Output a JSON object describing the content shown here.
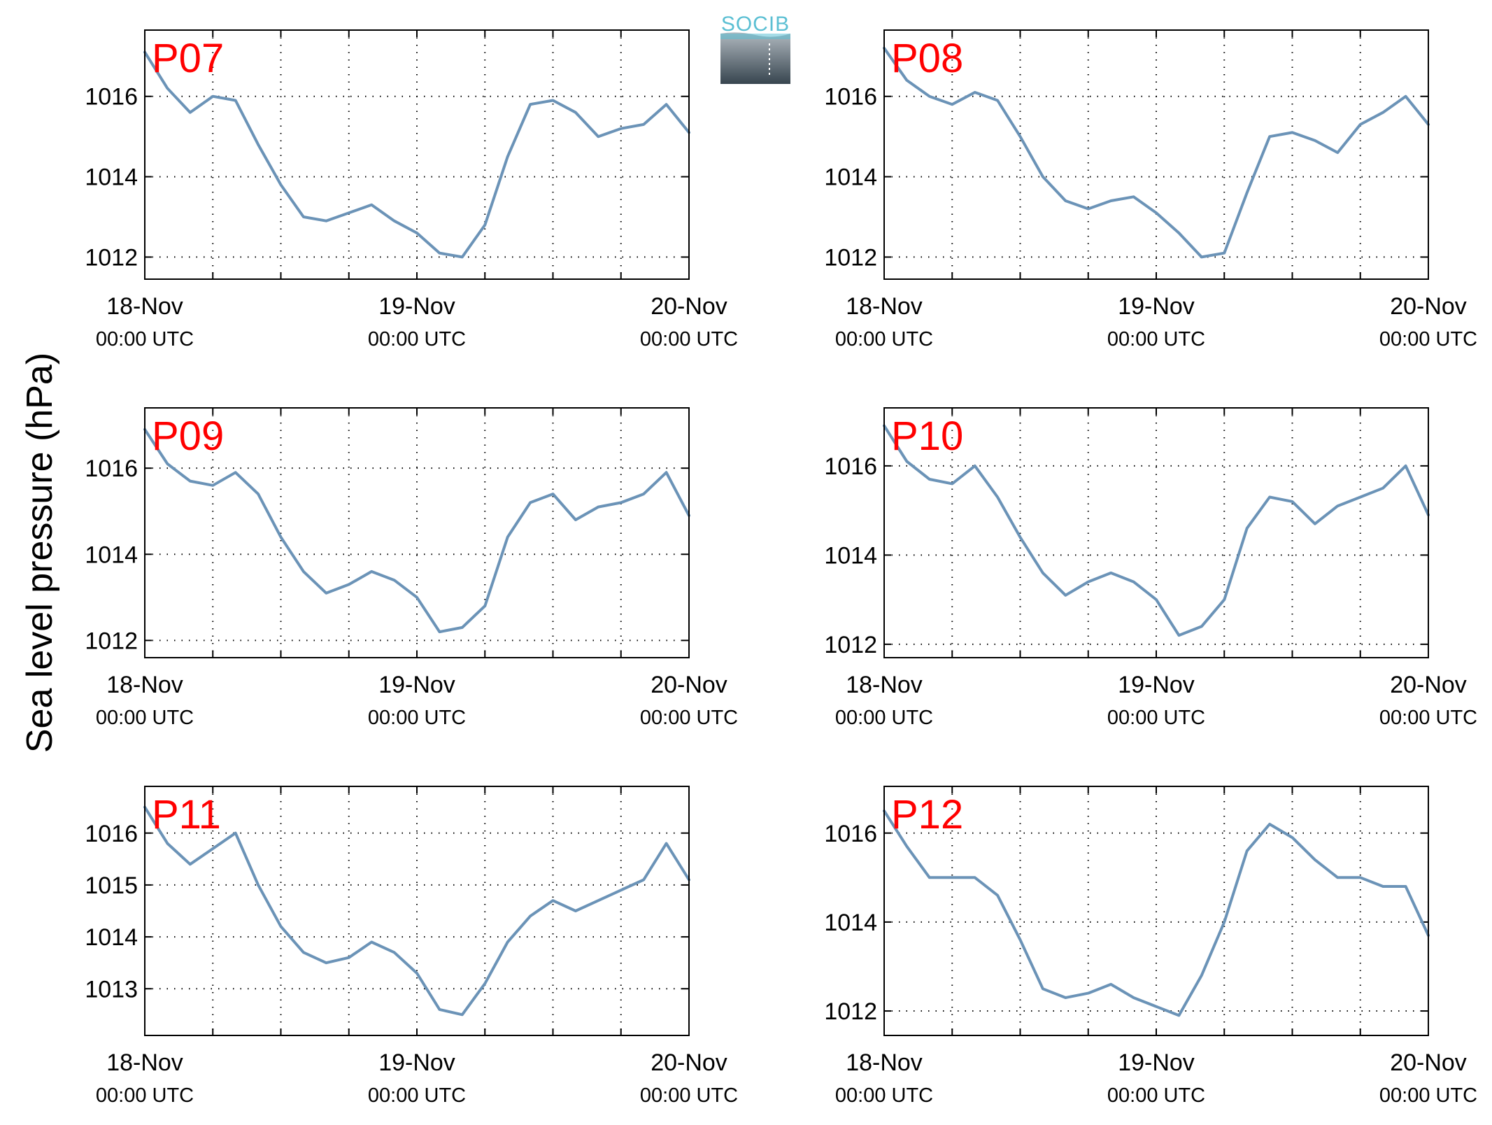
{
  "figure": {
    "ylabel": "Sea level pressure (hPa)",
    "logo_text": "SOCIB"
  },
  "colors": {
    "line": "#6b93b7",
    "panel_label": "#ff0000",
    "grid": "#000000",
    "logo_text": "#5bbfd3"
  },
  "chart_data": [
    {
      "type": "line",
      "panel": "P07",
      "x_ticks": [
        {
          "date": "18-Nov",
          "time": "00:00 UTC"
        },
        {
          "date": "19-Nov",
          "time": "00:00 UTC"
        },
        {
          "date": "20-Nov",
          "time": "00:00 UTC"
        }
      ],
      "x_hours": [
        0,
        2,
        4,
        6,
        8,
        10,
        12,
        14,
        16,
        18,
        20,
        22,
        24,
        26,
        28,
        30,
        32,
        34,
        36,
        38,
        40,
        42,
        44,
        46,
        48
      ],
      "values": [
        1017.1,
        1016.2,
        1015.6,
        1016.0,
        1015.9,
        1014.8,
        1013.8,
        1013.0,
        1012.9,
        1013.1,
        1013.3,
        1012.9,
        1012.6,
        1012.1,
        1012.0,
        1012.8,
        1014.5,
        1015.8,
        1015.9,
        1015.6,
        1015.0,
        1015.2,
        1015.3,
        1015.8,
        1015.1
      ],
      "y_ticks": [
        1012,
        1014,
        1016
      ],
      "ylim": [
        1011.45,
        1017.65
      ],
      "grid": "dotted"
    },
    {
      "type": "line",
      "panel": "P08",
      "x_ticks": [
        {
          "date": "18-Nov",
          "time": "00:00 UTC"
        },
        {
          "date": "19-Nov",
          "time": "00:00 UTC"
        },
        {
          "date": "20-Nov",
          "time": "00:00 UTC"
        }
      ],
      "x_hours": [
        0,
        2,
        4,
        6,
        8,
        10,
        12,
        14,
        16,
        18,
        20,
        22,
        24,
        26,
        28,
        30,
        32,
        34,
        36,
        38,
        40,
        42,
        44,
        46,
        48
      ],
      "values": [
        1017.2,
        1016.4,
        1016.0,
        1015.8,
        1016.1,
        1015.9,
        1015.0,
        1014.0,
        1013.4,
        1013.2,
        1013.4,
        1013.5,
        1013.1,
        1012.6,
        1012.0,
        1012.1,
        1013.6,
        1015.0,
        1015.1,
        1014.9,
        1014.6,
        1015.3,
        1015.6,
        1016.0,
        1015.3
      ],
      "y_ticks": [
        1012,
        1014,
        1016
      ],
      "ylim": [
        1011.45,
        1017.65
      ],
      "grid": "dotted"
    },
    {
      "type": "line",
      "panel": "P09",
      "x_ticks": [
        {
          "date": "18-Nov",
          "time": "00:00 UTC"
        },
        {
          "date": "19-Nov",
          "time": "00:00 UTC"
        },
        {
          "date": "20-Nov",
          "time": "00:00 UTC"
        }
      ],
      "x_hours": [
        0,
        2,
        4,
        6,
        8,
        10,
        12,
        14,
        16,
        18,
        20,
        22,
        24,
        26,
        28,
        30,
        32,
        34,
        36,
        38,
        40,
        42,
        44,
        46,
        48
      ],
      "values": [
        1016.9,
        1016.1,
        1015.7,
        1015.6,
        1015.9,
        1015.4,
        1014.4,
        1013.6,
        1013.1,
        1013.3,
        1013.6,
        1013.4,
        1013.0,
        1012.2,
        1012.3,
        1012.8,
        1014.4,
        1015.2,
        1015.4,
        1014.8,
        1015.1,
        1015.2,
        1015.4,
        1015.9,
        1014.9
      ],
      "y_ticks": [
        1012,
        1014,
        1016
      ],
      "ylim": [
        1011.6,
        1017.4
      ],
      "grid": "dotted"
    },
    {
      "type": "line",
      "panel": "P10",
      "x_ticks": [
        {
          "date": "18-Nov",
          "time": "00:00 UTC"
        },
        {
          "date": "19-Nov",
          "time": "00:00 UTC"
        },
        {
          "date": "20-Nov",
          "time": "00:00 UTC"
        }
      ],
      "x_hours": [
        0,
        2,
        4,
        6,
        8,
        10,
        12,
        14,
        16,
        18,
        20,
        22,
        24,
        26,
        28,
        30,
        32,
        34,
        36,
        38,
        40,
        42,
        44,
        46,
        48
      ],
      "values": [
        1016.9,
        1016.1,
        1015.7,
        1015.6,
        1016.0,
        1015.3,
        1014.4,
        1013.6,
        1013.1,
        1013.4,
        1013.6,
        1013.4,
        1013.0,
        1012.2,
        1012.4,
        1013.0,
        1014.6,
        1015.3,
        1015.2,
        1014.7,
        1015.1,
        1015.3,
        1015.5,
        1016.0,
        1014.9
      ],
      "y_ticks": [
        1012,
        1014,
        1016
      ],
      "ylim": [
        1011.7,
        1017.3
      ],
      "grid": "dotted"
    },
    {
      "type": "line",
      "panel": "P11",
      "x_ticks": [
        {
          "date": "18-Nov",
          "time": "00:00 UTC"
        },
        {
          "date": "19-Nov",
          "time": "00:00 UTC"
        },
        {
          "date": "20-Nov",
          "time": "00:00 UTC"
        }
      ],
      "x_hours": [
        0,
        2,
        4,
        6,
        8,
        10,
        12,
        14,
        16,
        18,
        20,
        22,
        24,
        26,
        28,
        30,
        32,
        34,
        36,
        38,
        40,
        42,
        44,
        46,
        48
      ],
      "values": [
        1016.5,
        1015.8,
        1015.4,
        1015.7,
        1016.0,
        1015.0,
        1014.2,
        1013.7,
        1013.5,
        1013.6,
        1013.9,
        1013.7,
        1013.3,
        1012.6,
        1012.5,
        1013.1,
        1013.9,
        1014.4,
        1014.7,
        1014.5,
        1014.7,
        1014.9,
        1015.1,
        1015.8,
        1015.1
      ],
      "y_ticks": [
        1013,
        1014,
        1015,
        1016
      ],
      "ylim": [
        1012.1,
        1016.9
      ],
      "grid": "dotted"
    },
    {
      "type": "line",
      "panel": "P12",
      "x_ticks": [
        {
          "date": "18-Nov",
          "time": "00:00 UTC"
        },
        {
          "date": "19-Nov",
          "time": "00:00 UTC"
        },
        {
          "date": "20-Nov",
          "time": "00:00 UTC"
        }
      ],
      "x_hours": [
        0,
        2,
        4,
        6,
        8,
        10,
        12,
        14,
        16,
        18,
        20,
        22,
        24,
        26,
        28,
        30,
        32,
        34,
        36,
        38,
        40,
        42,
        44,
        46,
        48
      ],
      "values": [
        1016.5,
        1015.7,
        1015.0,
        1015.0,
        1015.0,
        1014.6,
        1013.6,
        1012.5,
        1012.3,
        1012.4,
        1012.6,
        1012.3,
        1012.1,
        1011.9,
        1012.8,
        1014.0,
        1015.6,
        1016.2,
        1015.9,
        1015.4,
        1015.0,
        1015.0,
        1014.8,
        1014.8,
        1013.7
      ],
      "y_ticks": [
        1012,
        1014,
        1016
      ],
      "ylim": [
        1011.45,
        1017.05
      ],
      "grid": "dotted"
    }
  ]
}
